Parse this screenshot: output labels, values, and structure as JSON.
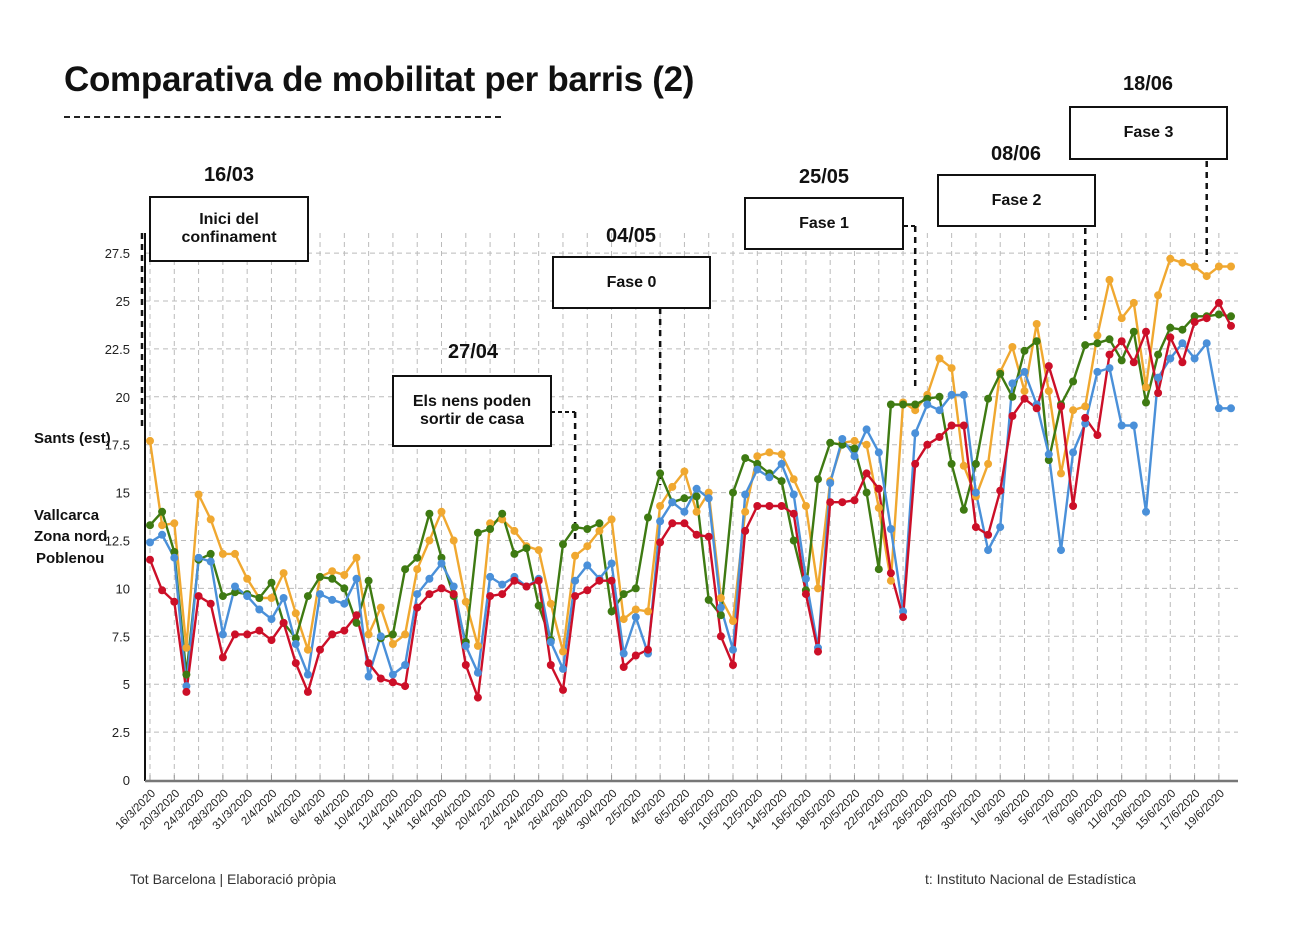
{
  "title": "Comparativa de mobilitat per barris (2)",
  "footer": {
    "credit": "Tot Barcelona | Elaboració pròpia",
    "source": "t: Instituto Nacional de Estadística"
  },
  "annotations": [
    {
      "date": "16/03",
      "text": "Inici del confinament",
      "index": 0
    },
    {
      "date": "27/04",
      "text": "Els nens poden sortir de casa",
      "index": 35
    },
    {
      "date": "04/05",
      "text": "Fase 0",
      "index": 42
    },
    {
      "date": "25/05",
      "text": "Fase 1",
      "index": 63
    },
    {
      "date": "08/06",
      "text": "Fase 2",
      "index": 77
    },
    {
      "date": "18/06",
      "text": "Fase 3",
      "index": 87
    }
  ],
  "chart_data": {
    "type": "line",
    "title": "Comparativa de mobilitat per barris (2)",
    "xlabel": "",
    "ylabel": "",
    "ylim": [
      0,
      28.5
    ],
    "yticks": [
      0,
      2.5,
      5,
      7.5,
      10,
      12.5,
      15,
      17.5,
      20,
      22.5,
      25,
      27.5
    ],
    "ytick_labels": [
      "0",
      "2.5",
      "5",
      "7.5",
      "10",
      "12.5",
      "15",
      "17.5",
      "20",
      "22.5",
      "25",
      "27.5"
    ],
    "grid": true,
    "point_count": 90,
    "xtick_labels": [
      "16/3/2020",
      "20/3/2020",
      "24/3/2020",
      "28/3/2020",
      "31/3/2020",
      "2/4/2020",
      "4/4/2020",
      "6/4/2020",
      "8/4/2020",
      "10/4/2020",
      "12/4/2020",
      "14/4/2020",
      "16/4/2020",
      "18/4/2020",
      "20/4/2020",
      "22/4/2020",
      "24/4/2020",
      "26/4/2020",
      "28/4/2020",
      "30/4/2020",
      "2/5/2020",
      "4/5/2020",
      "6/5/2020",
      "8/5/2020",
      "10/5/2020",
      "12/5/2020",
      "14/5/2020",
      "16/5/2020",
      "18/5/2020",
      "20/5/2020",
      "22/5/2020",
      "24/5/2020",
      "26/5/2020",
      "28/5/2020",
      "30/5/2020",
      "1/6/2020",
      "3/6/2020",
      "5/6/2020",
      "7/6/2020",
      "9/6/2020",
      "11/6/2020",
      "13/6/2020",
      "15/6/2020",
      "17/6/2020",
      "19/6/2020"
    ],
    "legend_placement": "left",
    "series": [
      {
        "name": "Sants (est)",
        "color": "#F0A830",
        "values": [
          17.7,
          13.3,
          13.4,
          6.9,
          14.9,
          13.6,
          11.8,
          11.8,
          10.5,
          9.5,
          9.5,
          10.8,
          8.7,
          6.8,
          10.6,
          10.9,
          10.7,
          11.6,
          7.6,
          9.0,
          7.1,
          7.6,
          11.0,
          12.5,
          14.0,
          12.5,
          9.3,
          7.0,
          13.4,
          13.6,
          13.0,
          12.2,
          12.0,
          9.2,
          6.7,
          11.7,
          12.2,
          13.0,
          13.6,
          8.4,
          8.9,
          8.8,
          14.3,
          15.3,
          16.1,
          14.0,
          15.0,
          9.5,
          8.3,
          14.0,
          16.9,
          17.1,
          17.0,
          15.7,
          14.3,
          10.0,
          15.6,
          17.6,
          17.7,
          17.5,
          14.2,
          10.4,
          19.7,
          19.3,
          20.1,
          22.0,
          21.5,
          16.4,
          14.8,
          16.5,
          21.3,
          22.6,
          20.3,
          23.8,
          20.3,
          16.0,
          19.3,
          19.5,
          23.2,
          26.1,
          24.1,
          24.9,
          20.5,
          25.3,
          27.2,
          27.0,
          26.8,
          26.3,
          26.8,
          26.8
        ]
      },
      {
        "name": "Vallcarca",
        "color": "#3E7A12",
        "values": [
          13.3,
          14.0,
          11.9,
          5.5,
          11.5,
          11.8,
          9.6,
          9.8,
          9.7,
          9.5,
          10.3,
          8.2,
          7.4,
          9.6,
          10.6,
          10.5,
          10.0,
          8.2,
          10.4,
          7.4,
          7.6,
          11.0,
          11.6,
          13.9,
          11.6,
          9.6,
          7.2,
          12.9,
          13.1,
          13.9,
          11.8,
          12.1,
          9.1,
          7.3,
          12.3,
          13.2,
          13.1,
          13.4,
          8.8,
          9.7,
          10.0,
          13.7,
          16.0,
          14.5,
          14.7,
          14.8,
          9.4,
          8.6,
          15.0,
          16.8,
          16.5,
          16.0,
          15.6,
          12.5,
          9.9,
          15.7,
          17.6,
          17.5,
          17.3,
          15.0,
          11.0,
          19.6,
          19.6,
          19.6,
          19.9,
          20.0,
          16.5,
          14.1,
          16.5,
          19.9,
          21.2,
          20.0,
          22.4,
          22.9,
          16.7,
          19.6,
          20.8,
          22.7,
          22.8,
          23.0,
          21.9,
          23.4,
          19.7,
          22.2,
          23.6,
          23.5,
          24.2,
          24.2,
          24.3,
          24.2
        ]
      },
      {
        "name": "Zona nord",
        "color": "#4A90D9",
        "values": [
          12.4,
          12.8,
          11.6,
          4.9,
          11.6,
          11.4,
          7.6,
          10.1,
          9.6,
          8.9,
          8.4,
          9.5,
          7.1,
          5.5,
          9.7,
          9.4,
          9.2,
          10.5,
          5.4,
          7.5,
          5.5,
          6.0,
          9.7,
          10.5,
          11.3,
          10.1,
          7.0,
          5.6,
          10.6,
          10.2,
          10.6,
          10.1,
          10.5,
          7.2,
          5.8,
          10.4,
          11.2,
          10.5,
          11.3,
          6.6,
          8.5,
          6.6,
          13.5,
          14.5,
          14.0,
          15.2,
          14.7,
          9.0,
          6.8,
          14.9,
          16.2,
          15.8,
          16.5,
          14.9,
          10.5,
          6.9,
          15.5,
          17.8,
          16.9,
          18.3,
          17.1,
          13.1,
          8.8,
          18.1,
          19.6,
          19.3,
          20.1,
          20.1,
          15.0,
          12.0,
          13.2,
          20.7,
          21.3,
          19.6,
          17.0,
          12.0,
          17.1,
          18.6,
          21.3,
          21.5,
          18.5,
          18.5,
          14.0,
          21.0,
          22.0,
          22.8,
          22.0,
          22.8,
          19.4,
          19.4
        ]
      },
      {
        "name": "Poblenou",
        "color": "#CC0F28",
        "values": [
          11.5,
          9.9,
          9.3,
          4.6,
          9.6,
          9.2,
          6.4,
          7.6,
          7.6,
          7.8,
          7.3,
          8.2,
          6.1,
          4.6,
          6.8,
          7.6,
          7.8,
          8.6,
          6.1,
          5.3,
          5.1,
          4.9,
          9.0,
          9.7,
          10.0,
          9.7,
          6.0,
          4.3,
          9.6,
          9.7,
          10.4,
          10.1,
          10.4,
          6.0,
          4.7,
          9.6,
          9.9,
          10.4,
          10.4,
          5.9,
          6.5,
          6.8,
          12.4,
          13.4,
          13.4,
          12.8,
          12.7,
          7.5,
          6.0,
          13.0,
          14.3,
          14.3,
          14.3,
          13.9,
          9.7,
          6.7,
          14.5,
          14.5,
          14.6,
          16.0,
          15.2,
          10.8,
          8.5,
          16.5,
          17.5,
          17.9,
          18.5,
          18.5,
          13.2,
          12.8,
          15.1,
          19.0,
          19.9,
          19.4,
          21.6,
          19.5,
          14.3,
          18.9,
          18.0,
          22.2,
          22.9,
          21.8,
          23.4,
          20.2,
          23.1,
          21.8,
          23.9,
          24.1,
          24.9,
          23.7
        ]
      }
    ]
  }
}
